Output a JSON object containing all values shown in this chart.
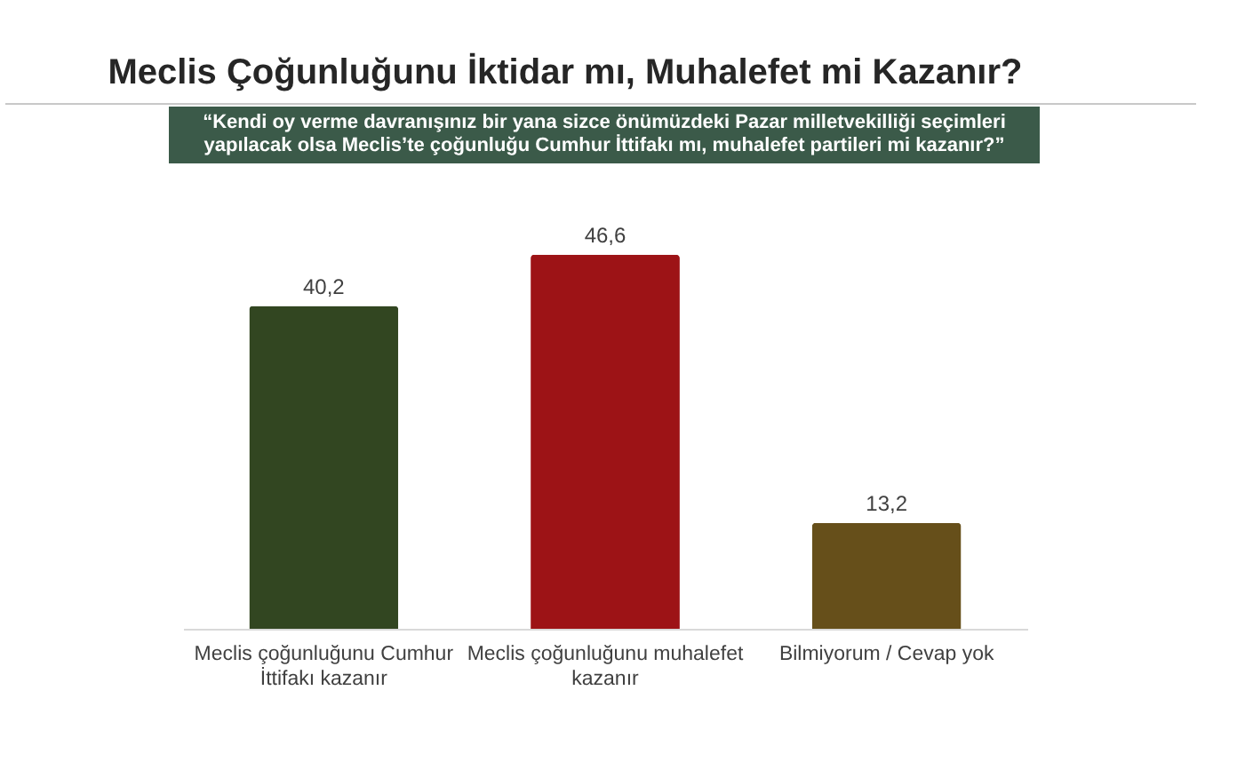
{
  "chart_data": {
    "type": "bar",
    "title": "Meclis Çoğunluğunu İktidar mı, Muhalefet mi Kazanır?",
    "subtitle": "“Kendi oy verme davranışınız bir yana sizce önümüzdeki Pazar milletvekilliği seçimleri yapılacak olsa Meclis’te çoğunluğu Cumhur İttifakı mı, muhalefet partileri mi kazanır?”",
    "categories": [
      "Meclis çoğunluğunu Cumhur İttifakı kazanır",
      "Meclis çoğunluğunu muhalefet kazanır",
      "Bilmiyorum / Cevap yok"
    ],
    "values": [
      40.2,
      46.6,
      13.2
    ],
    "colors": [
      "#324621",
      "#9d1316",
      "#664f1a"
    ],
    "value_labels": [
      "40,2",
      "46,6",
      "13,2"
    ]
  }
}
